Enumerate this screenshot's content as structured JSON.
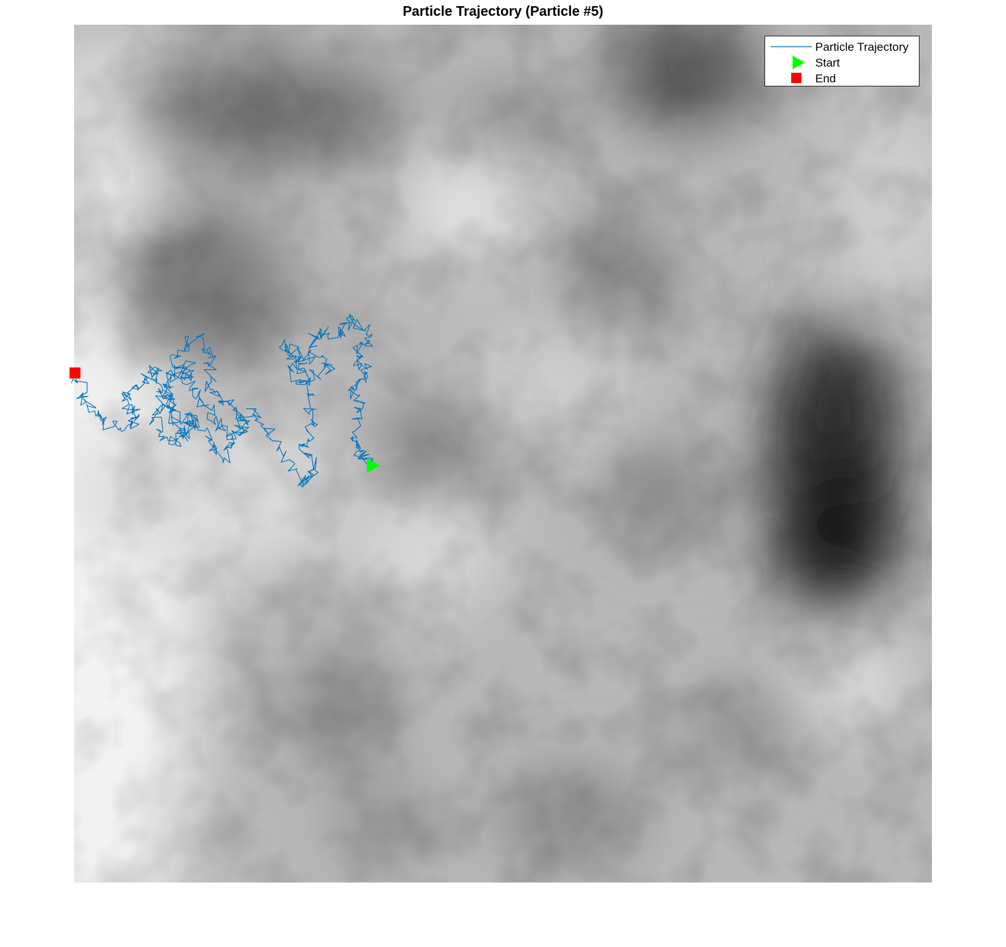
{
  "chart_data": {
    "type": "line",
    "title": "Particle Trajectory (Particle #5)",
    "xlabel": "",
    "ylabel": "",
    "axes_visible": false,
    "grid": false,
    "xlim": [
      0,
      100
    ],
    "ylim": [
      0,
      100
    ],
    "background": {
      "type": "heatmap",
      "colormap": "gray",
      "description_note": ""
    },
    "series": [
      {
        "name": "Particle Trajectory",
        "color": "#0072BD",
        "anchors": [
          [
            34.7,
            48.6
          ],
          [
            33.3,
            49.8
          ],
          [
            32.5,
            52.0
          ],
          [
            33.5,
            55.0
          ],
          [
            32.6,
            57.5
          ],
          [
            34.2,
            59.4
          ],
          [
            32.9,
            61.4
          ],
          [
            34.6,
            63.6
          ],
          [
            32.3,
            65.7
          ],
          [
            31.1,
            63.9
          ],
          [
            28.5,
            64.2
          ],
          [
            27.2,
            61.5
          ],
          [
            29.8,
            60.2
          ],
          [
            27.0,
            58.5
          ],
          [
            26.5,
            61.3
          ],
          [
            24.3,
            62.8
          ],
          [
            25.6,
            59.5
          ],
          [
            27.2,
            57.0
          ],
          [
            28.0,
            53.4
          ],
          [
            26.6,
            50.8
          ],
          [
            27.9,
            48.2
          ],
          [
            26.6,
            46.1
          ],
          [
            23.8,
            50.5
          ],
          [
            20.9,
            55.2
          ],
          [
            18.2,
            52.4
          ],
          [
            17.5,
            49.5
          ],
          [
            15.8,
            51.7
          ],
          [
            13.7,
            54.6
          ],
          [
            12.8,
            52.1
          ],
          [
            11.1,
            55.5
          ],
          [
            10.8,
            57.8
          ],
          [
            12.1,
            61.4
          ],
          [
            14.2,
            63.6
          ],
          [
            15.8,
            61.2
          ],
          [
            15.9,
            57.4
          ],
          [
            18.1,
            55.6
          ],
          [
            20.1,
            53.5
          ],
          [
            18.8,
            52.0
          ],
          [
            16.3,
            53.9
          ],
          [
            14.6,
            56.4
          ],
          [
            12.9,
            58.6
          ],
          [
            13.5,
            60.3
          ],
          [
            10.9,
            58.7
          ],
          [
            11.2,
            55.2
          ],
          [
            13.9,
            53.1
          ],
          [
            11.6,
            51.0
          ],
          [
            9.3,
            53.9
          ],
          [
            10.2,
            57.1
          ],
          [
            9.4,
            60.1
          ],
          [
            7.1,
            57.9
          ],
          [
            5.6,
            56.1
          ],
          [
            7.5,
            54.3
          ],
          [
            5.5,
            52.6
          ],
          [
            2.8,
            54.5
          ],
          [
            1.4,
            56.0
          ],
          [
            0.1,
            59.4
          ]
        ]
      }
    ],
    "markers": [
      {
        "name": "Start",
        "shape": "triangle-right",
        "color": "#00FF00",
        "x": 34.7,
        "y": 48.6
      },
      {
        "name": "End",
        "shape": "square",
        "color": "#FF0000",
        "x": 0.1,
        "y": 59.4
      }
    ],
    "legend": {
      "position": "top-right",
      "entries": [
        "Particle Trajectory",
        "Start",
        "End"
      ]
    }
  }
}
